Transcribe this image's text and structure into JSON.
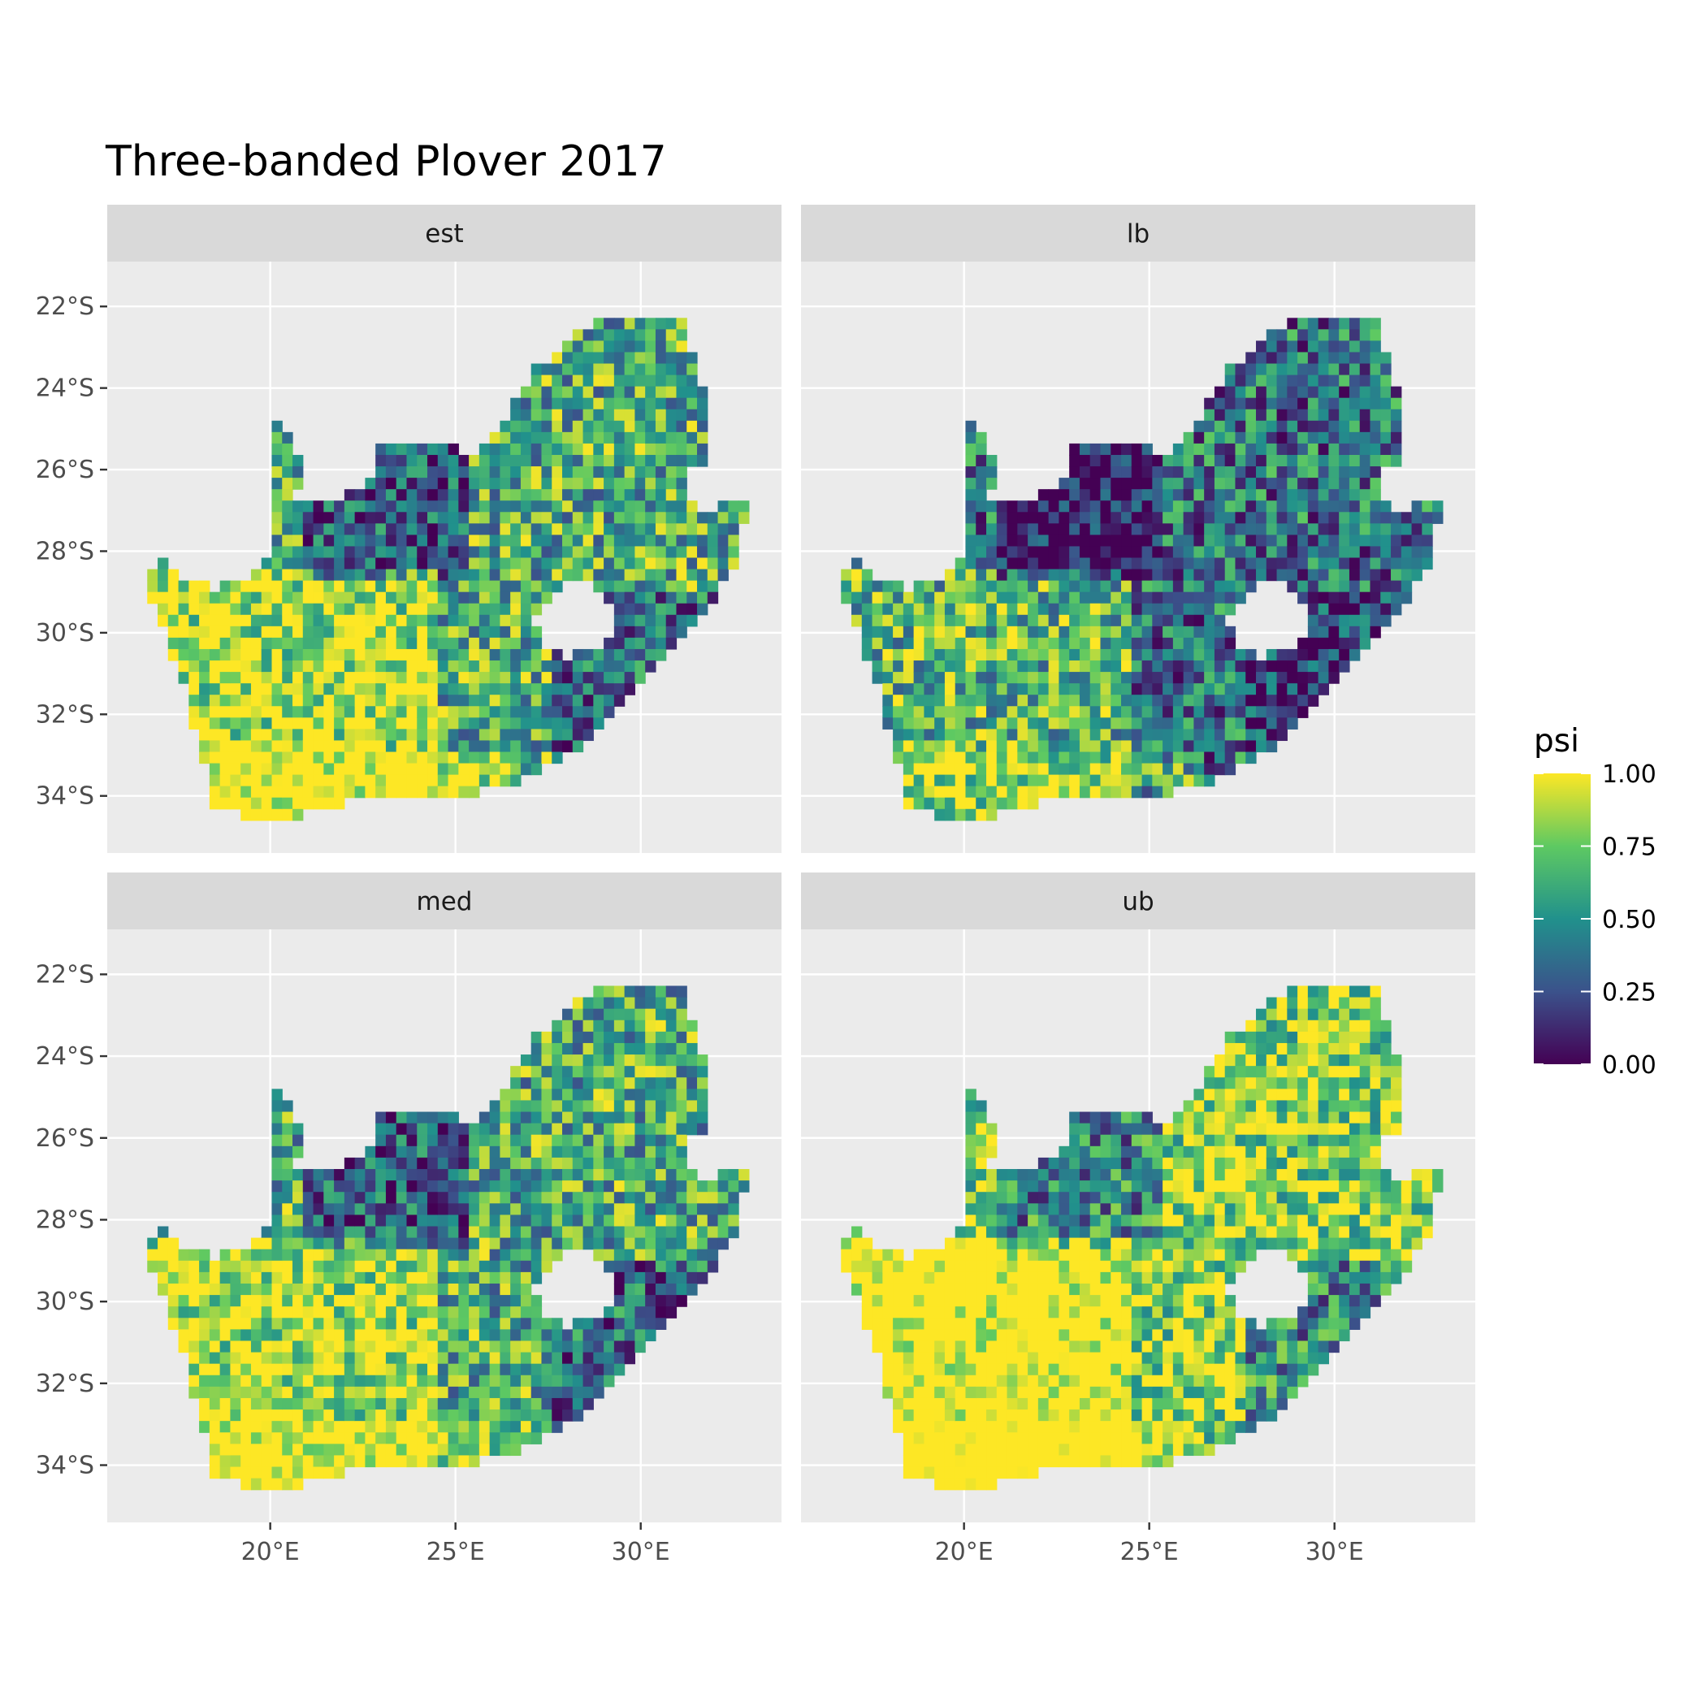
{
  "title": "Three-banded Plover 2017",
  "panels": [
    {
      "label": "est",
      "mean": 0.62,
      "eastLow": 0.18
    },
    {
      "label": "lb",
      "mean": 0.38,
      "eastLow": 0.05
    },
    {
      "label": "med",
      "mean": 0.62,
      "eastLow": 0.15
    },
    {
      "label": "ub",
      "mean": 0.82,
      "eastLow": 0.25
    }
  ],
  "x_ticks": [
    {
      "value": 20,
      "label": "20°E"
    },
    {
      "value": 25,
      "label": "25°E"
    },
    {
      "value": 30,
      "label": "30°E"
    }
  ],
  "y_ticks": [
    {
      "value": -22,
      "label": "22°S"
    },
    {
      "value": -24,
      "label": "24°S"
    },
    {
      "value": -26,
      "label": "26°S"
    },
    {
      "value": -28,
      "label": "28°S"
    },
    {
      "value": -30,
      "label": "30°S"
    },
    {
      "value": -32,
      "label": "32°S"
    },
    {
      "value": -34,
      "label": "34°S"
    }
  ],
  "legend": {
    "title": "psi",
    "ticks": [
      {
        "value": 1.0,
        "label": "1.00"
      },
      {
        "value": 0.75,
        "label": "0.75"
      },
      {
        "value": 0.5,
        "label": "0.50"
      },
      {
        "value": 0.25,
        "label": "0.25"
      },
      {
        "value": 0.0,
        "label": "0.00"
      }
    ],
    "colormap": "viridis",
    "colors": [
      "#440154",
      "#3b528b",
      "#21918c",
      "#5ec962",
      "#fde725"
    ]
  },
  "colors": {
    "panel_background": "#ebebeb",
    "strip_background": "#d9d9d9",
    "grid": "#ffffff"
  }
}
